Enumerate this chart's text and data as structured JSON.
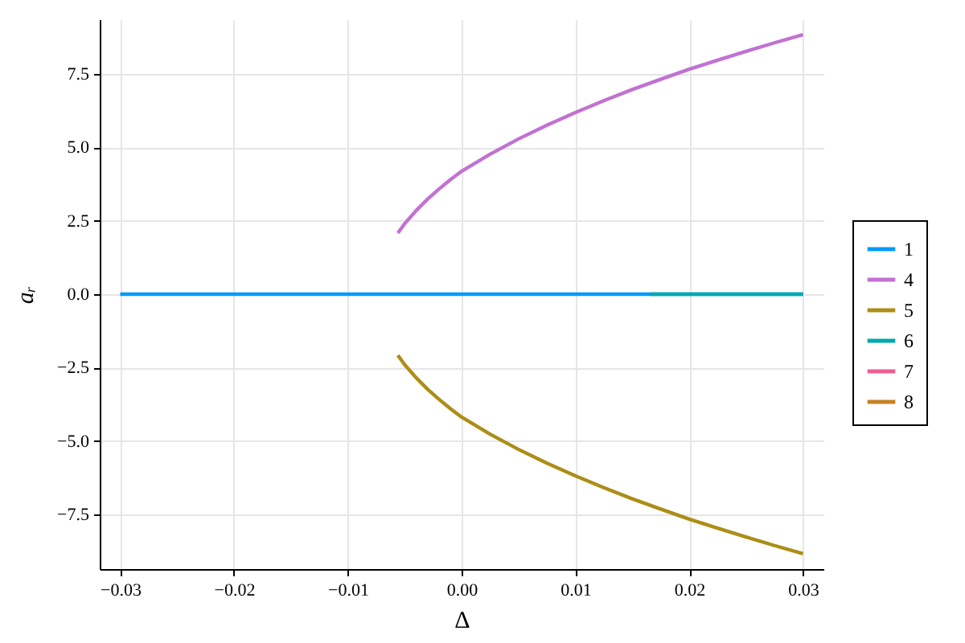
{
  "chart_data": {
    "type": "line",
    "xlabel": "Δ",
    "ylabel": "aᵣ",
    "xlim": [
      -0.0318,
      0.0318
    ],
    "ylim": [
      -9.35,
      9.35
    ],
    "xticks": [
      {
        "value": -0.03,
        "label": "−0.03"
      },
      {
        "value": -0.02,
        "label": "−0.02"
      },
      {
        "value": -0.01,
        "label": "−0.01"
      },
      {
        "value": 0,
        "label": "0.00"
      },
      0.01,
      0.02,
      0.03
    ],
    "yticks": [
      {
        "value": -7.5,
        "label": "−7.5"
      },
      {
        "value": -5,
        "label": "−5.0"
      },
      {
        "value": -2.5,
        "label": "−2.5"
      },
      {
        "value": 0,
        "label": "0.0"
      },
      2.5,
      {
        "value": 5,
        "label": "5.0"
      },
      7.5
    ],
    "grid": true,
    "legend": "right",
    "marker": "none",
    "line_style": "solid",
    "series": [
      {
        "name": "1",
        "color": "#009af9",
        "x": [
          -0.03,
          0.03
        ],
        "values": [
          0,
          0
        ]
      },
      {
        "name": "4",
        "color": "#c271d2",
        "x": [
          -0.0056,
          -0.005,
          -0.004,
          -0.003,
          -0.002,
          -0.001,
          0,
          0.0025,
          0.005,
          0.0075,
          0.01,
          0.0125,
          0.015,
          0.0175,
          0.02,
          0.0225,
          0.025,
          0.0275,
          0.03
        ],
        "values": [
          2.08,
          2.4,
          2.84,
          3.23,
          3.57,
          3.89,
          4.18,
          4.76,
          5.28,
          5.75,
          6.18,
          6.58,
          6.96,
          7.31,
          7.65,
          7.96,
          8.26,
          8.55,
          8.83
        ]
      },
      {
        "name": "5",
        "color": "#ac8d18",
        "x": [
          -0.0056,
          -0.005,
          -0.004,
          -0.003,
          -0.002,
          -0.001,
          0,
          0.0025,
          0.005,
          0.0075,
          0.01,
          0.0125,
          0.015,
          0.0175,
          0.02,
          0.0225,
          0.025,
          0.0275,
          0.03
        ],
        "values": [
          -2.08,
          -2.4,
          -2.84,
          -3.23,
          -3.57,
          -3.89,
          -4.18,
          -4.76,
          -5.28,
          -5.75,
          -6.18,
          -6.58,
          -6.96,
          -7.31,
          -7.65,
          -7.96,
          -8.26,
          -8.55,
          -8.83
        ]
      },
      {
        "name": "6",
        "color": "#00a9ad",
        "x": [
          0.0166,
          0.03
        ],
        "values": [
          0,
          0
        ]
      },
      {
        "name": "7",
        "color": "#ed5e93"
      },
      {
        "name": "8",
        "color": "#c68125"
      }
    ]
  }
}
